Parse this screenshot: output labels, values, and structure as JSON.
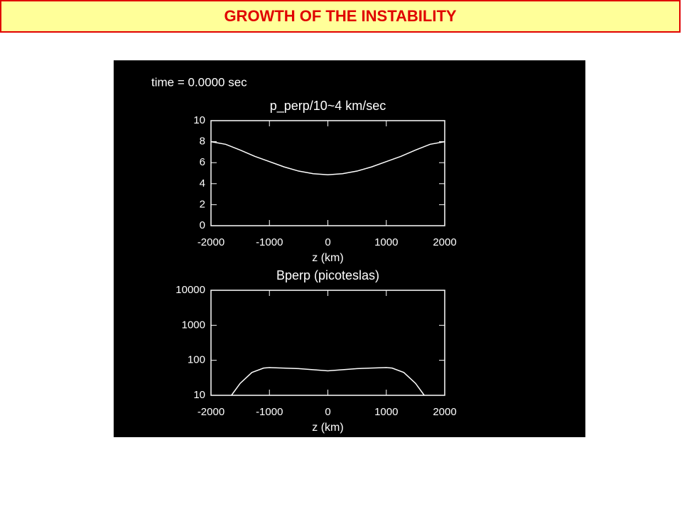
{
  "header": {
    "title": "GROWTH OF THE INSTABILITY"
  },
  "chart_data": [
    {
      "type": "line",
      "annotation": "time =  0.0000 sec",
      "title": "p_perp/10~4 km/sec",
      "x_label": "z (km)",
      "x": [
        -2000,
        -1750,
        -1500,
        -1250,
        -1000,
        -750,
        -500,
        -250,
        0,
        250,
        500,
        750,
        1000,
        1250,
        1500,
        1750,
        2000
      ],
      "values": [
        8.0,
        7.75,
        7.2,
        6.6,
        6.1,
        5.6,
        5.2,
        4.95,
        4.85,
        4.95,
        5.2,
        5.6,
        6.1,
        6.6,
        7.2,
        7.75,
        8.0
      ],
      "color": "#ffffff",
      "xlim": [
        -2000,
        2000
      ],
      "xticks": [
        -2000,
        -1000,
        0,
        1000,
        2000
      ],
      "ylim": [
        0,
        10
      ],
      "yticks": [
        0,
        2,
        4,
        6,
        8,
        10
      ],
      "log_scale": false
    },
    {
      "type": "line",
      "title": "Bperp (picoteslas)",
      "x_label": "z (km)",
      "x": [
        -1650,
        -1500,
        -1300,
        -1100,
        -1000,
        -500,
        0,
        500,
        1000,
        1100,
        1300,
        1500,
        1650
      ],
      "values": [
        10,
        22,
        45,
        60,
        62,
        58,
        50,
        58,
        62,
        60,
        45,
        22,
        10
      ],
      "color": "#ffffff",
      "xlim": [
        -2000,
        2000
      ],
      "xticks": [
        -2000,
        -1000,
        0,
        1000,
        2000
      ],
      "ylim": [
        10,
        10000
      ],
      "yticks": [
        10,
        100,
        1000,
        10000
      ],
      "log_scale": true
    }
  ]
}
